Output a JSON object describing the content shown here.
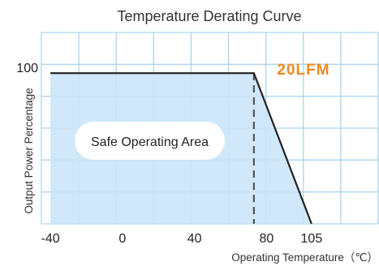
{
  "chart_data": {
    "type": "area",
    "title": "Temperature Derating Curve",
    "xlabel": "Operating Temperature（℃）",
    "ylabel": "Output Power Percentage",
    "x_ticks": [
      "-40",
      "0",
      "40",
      "80",
      "105"
    ],
    "y_ticks": [
      "100"
    ],
    "xlim": [
      -45,
      142
    ],
    "ylim": [
      0,
      127
    ],
    "grid": true,
    "series": [
      {
        "x": [
          -40,
          73,
          105
        ],
        "y": [
          100,
          100,
          0
        ]
      }
    ],
    "reference_lines": [
      {
        "x": 73,
        "style": "dashed"
      }
    ],
    "annotations": {
      "airflow": "20LFM",
      "region": "Safe Operating Area"
    }
  },
  "colors": {
    "fill": "#cbe6f8",
    "grid": "#a9d6ef",
    "curve": "#222222",
    "annotation": "#f08a24",
    "pill_bg": "#ffffff"
  }
}
